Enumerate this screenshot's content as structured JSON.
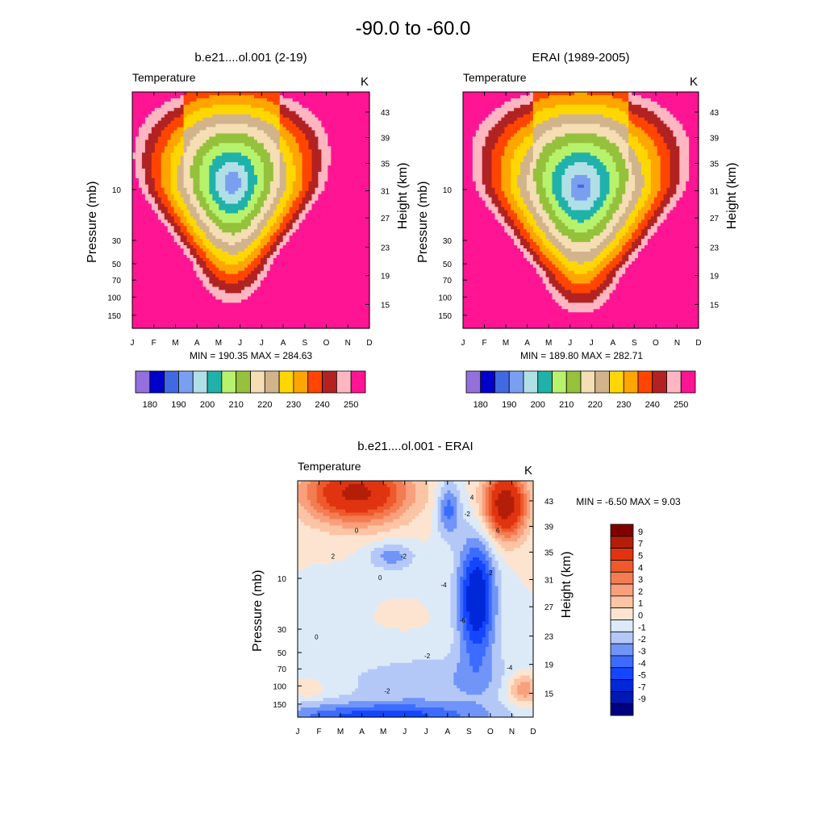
{
  "page_title": "-90.0 to -60.0",
  "chart_data": [
    {
      "id": "model",
      "type": "contour",
      "title": "b.e21....ol.001 (2-19)",
      "left_label": "Temperature",
      "right_label": "K",
      "xlabel": "",
      "ylabel": "Pressure (mb)",
      "ylabel_right": "Height (km)",
      "x_ticks": [
        "J",
        "F",
        "M",
        "A",
        "M",
        "J",
        "J",
        "A",
        "S",
        "O",
        "N",
        "D"
      ],
      "y_ticks": [
        "10",
        "30",
        "50",
        "70",
        "100",
        "150"
      ],
      "y_ticks_right": [
        "43",
        "39",
        "35",
        "31",
        "27",
        "23",
        "19",
        "15"
      ],
      "minmax_text": "MIN = 190.35  MAX = 284.63",
      "min": 190.35,
      "max": 284.63,
      "levels": [
        180,
        185,
        190,
        195,
        200,
        205,
        210,
        215,
        220,
        225,
        230,
        235,
        240,
        245,
        250
      ],
      "colorbar_labels": [
        "180",
        "190",
        "200",
        "210",
        "220",
        "230",
        "240",
        "250"
      ],
      "colors": [
        "#9370db",
        "#0000cd",
        "#4169e1",
        "#7b9ff0",
        "#b0e0e6",
        "#20b2aa",
        "#b7f26d",
        "#95c13c",
        "#f5deb3",
        "#d2b48c",
        "#ffd700",
        "#ffa500",
        "#ff4500",
        "#b22222",
        "#ffb6c1",
        "#ff1493"
      ]
    },
    {
      "id": "obs",
      "type": "contour",
      "title": "ERAI (1989-2005)",
      "left_label": "Temperature",
      "right_label": "K",
      "xlabel": "",
      "ylabel": "Pressure (mb)",
      "ylabel_right": "Height (km)",
      "x_ticks": [
        "J",
        "F",
        "M",
        "A",
        "M",
        "J",
        "J",
        "A",
        "S",
        "O",
        "N",
        "D"
      ],
      "y_ticks": [
        "10",
        "30",
        "50",
        "70",
        "100",
        "150"
      ],
      "y_ticks_right": [
        "43",
        "39",
        "35",
        "31",
        "27",
        "23",
        "19",
        "15"
      ],
      "minmax_text": "MIN = 189.80  MAX = 282.71",
      "min": 189.8,
      "max": 282.71,
      "levels": [
        180,
        185,
        190,
        195,
        200,
        205,
        210,
        215,
        220,
        225,
        230,
        235,
        240,
        245,
        250
      ],
      "colorbar_labels": [
        "180",
        "190",
        "200",
        "210",
        "220",
        "230",
        "240",
        "250"
      ],
      "colors": [
        "#9370db",
        "#0000cd",
        "#4169e1",
        "#7b9ff0",
        "#b0e0e6",
        "#20b2aa",
        "#b7f26d",
        "#95c13c",
        "#f5deb3",
        "#d2b48c",
        "#ffd700",
        "#ffa500",
        "#ff4500",
        "#b22222",
        "#ffb6c1",
        "#ff1493"
      ]
    },
    {
      "id": "diff",
      "type": "contour",
      "title": "b.e21....ol.001 - ERAI",
      "left_label": "Temperature",
      "right_label": "K",
      "xlabel": "",
      "ylabel": "Pressure (mb)",
      "ylabel_right": "Height (km)",
      "x_ticks": [
        "J",
        "F",
        "M",
        "A",
        "M",
        "J",
        "J",
        "A",
        "S",
        "O",
        "N",
        "D"
      ],
      "y_ticks": [
        "10",
        "30",
        "50",
        "70",
        "100",
        "150"
      ],
      "y_ticks_right": [
        "43",
        "39",
        "35",
        "31",
        "27",
        "23",
        "19",
        "15"
      ],
      "minmax_text": "MIN =  -6.50  MAX =   9.03",
      "min": -6.5,
      "max": 9.03,
      "levels": [
        -9,
        -7,
        -5,
        -4,
        -3,
        -2,
        -1,
        0,
        1,
        2,
        3,
        4,
        5,
        7,
        9
      ],
      "colorbar_labels": [
        "9",
        "7",
        "5",
        "4",
        "3",
        "2",
        "1",
        "0",
        "-1",
        "-2",
        "-3",
        "-4",
        "-5",
        "-7",
        "-9"
      ],
      "colors": [
        "#000080",
        "#0018b4",
        "#0028d8",
        "#1446ff",
        "#3c6cff",
        "#7094f8",
        "#b4c8f8",
        "#dceaf8",
        "#fde4d0",
        "#fbc4a4",
        "#f8a07c",
        "#f47c52",
        "#ee5a2c",
        "#e03410",
        "#b41e08",
        "#800000"
      ],
      "contour_labels": [
        "0",
        "-2",
        "-4",
        "2",
        "4",
        "-6",
        "6"
      ]
    }
  ]
}
